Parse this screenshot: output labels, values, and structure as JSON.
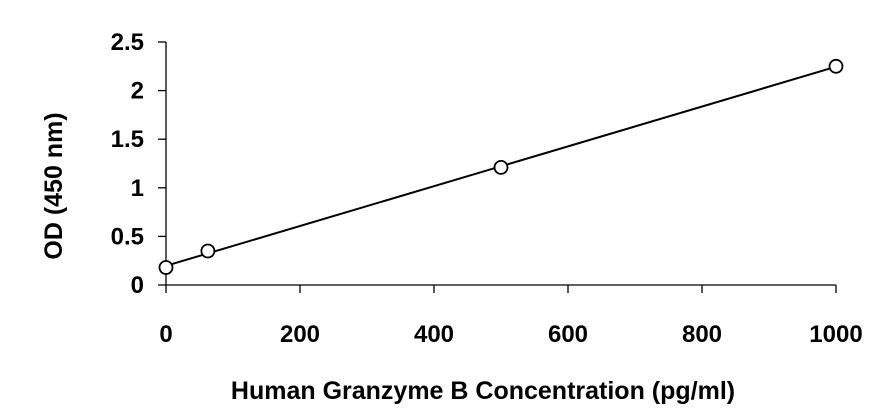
{
  "chart_data": {
    "type": "scatter",
    "title": "",
    "xlabel": "Human Granzyme B Concentration (pg/ml)",
    "ylabel": "OD (450 nm)",
    "xlim": [
      0,
      1000
    ],
    "ylim": [
      0,
      2.5
    ],
    "xticks": [
      0,
      200,
      400,
      600,
      800,
      1000
    ],
    "yticks": [
      0,
      0.5,
      1,
      1.5,
      2,
      2.5
    ],
    "xtick_labels": [
      "0",
      "200",
      "400",
      "600",
      "800",
      "1000"
    ],
    "ytick_labels": [
      "0",
      "0.5",
      "1",
      "1.5",
      "2",
      "2.5"
    ],
    "grid": false,
    "legend": "none",
    "series": [
      {
        "x": [
          0,
          62.5,
          500,
          1000
        ],
        "y": [
          0.18,
          0.35,
          1.21,
          2.25
        ],
        "marker": "open-circle",
        "trendline": "linear"
      }
    ]
  }
}
